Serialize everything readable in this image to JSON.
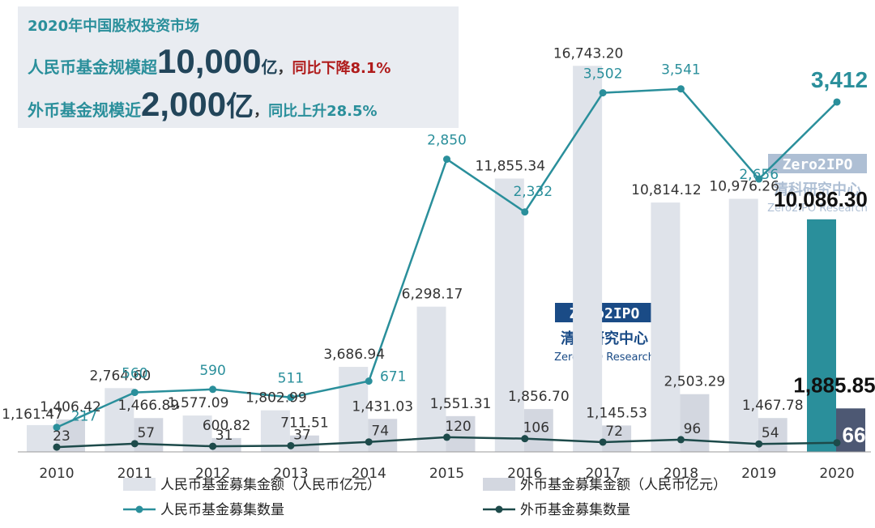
{
  "headline": {
    "title": "2020年中国股权投资市场",
    "line1_prefix": "人民币基金规模超",
    "line1_big": "10,000",
    "line1_unit": "亿",
    "line1_comma": "，",
    "line1_change": "同比下降8.1%",
    "line2_prefix": "外币基金规模近",
    "line2_big": "2,000",
    "line2_unit": "亿",
    "line2_comma": "，",
    "line2_change": "同比上升28.5%"
  },
  "watermark": {
    "logo_text": "Zero2IPO",
    "cn_name": "清科研究中心",
    "en_name": "Zero2IPO Research"
  },
  "colors": {
    "rmb_amount": "#dfe3ea",
    "rmb_amount_2020": "#2a8f9b",
    "fx_amount": "#d3d7e0",
    "fx_amount_2020": "#4d5873",
    "rmb_count": "#2a8f9b",
    "fx_count": "#1d4a4a",
    "headline_bg": "#e9ecf1",
    "headline_title": "#2a8f9b",
    "headline_red": "#b01c1c"
  },
  "chart_data": {
    "type": "bar",
    "categories": [
      "2010",
      "2011",
      "2012",
      "2013",
      "2014",
      "2015",
      "2016",
      "2017",
      "2018",
      "2019",
      "2020"
    ],
    "series": [
      {
        "name": "人民币基金募集金额（人民币亿元）",
        "kind": "bar",
        "values": [
          1161.47,
          2764.6,
          1577.09,
          1802.99,
          3686.94,
          6298.17,
          11855.34,
          16743.2,
          10814.12,
          10976.26,
          10086.3
        ],
        "labels": [
          "1,161.47",
          "2,764.60",
          "1,577.09",
          "1,802.99",
          "3,686.94",
          "6,298.17",
          "11,855.34",
          "16,743.20",
          "10,814.12",
          "10,976.26",
          "10,086.30"
        ]
      },
      {
        "name": "外币基金募集金额（人民币亿元）",
        "kind": "bar",
        "values": [
          1406.42,
          1466.89,
          600.82,
          711.51,
          1431.03,
          1551.31,
          1856.7,
          1145.53,
          2503.29,
          1467.78,
          1885.85
        ],
        "labels": [
          "1,406.42",
          "1,466.89",
          "600.82",
          "711.51",
          "1,431.03",
          "1,551.31",
          "1,856.70",
          "1,145.53",
          "2,503.29",
          "1,467.78",
          "1,885.85"
        ]
      },
      {
        "name": "人民币基金募集数量",
        "kind": "line",
        "values": [
          217,
          560,
          590,
          511,
          671,
          2850,
          2332,
          3502,
          3541,
          2656,
          3412
        ],
        "labels": [
          "217",
          "560",
          "590",
          "511",
          "671",
          "2,850",
          "2,332",
          "3,502",
          "3,541",
          "2,656",
          "3,412"
        ]
      },
      {
        "name": "外币基金募集数量",
        "kind": "line",
        "values": [
          23,
          57,
          31,
          37,
          74,
          120,
          106,
          72,
          96,
          54,
          66
        ],
        "labels": [
          "23",
          "57",
          "31",
          "37",
          "74",
          "120",
          "106",
          "72",
          "96",
          "54",
          "66"
        ]
      }
    ],
    "ylim_amount": [
      0,
      17000
    ],
    "ylim_count": [
      0,
      4000
    ],
    "grid": false,
    "legend_position": "bottom"
  }
}
